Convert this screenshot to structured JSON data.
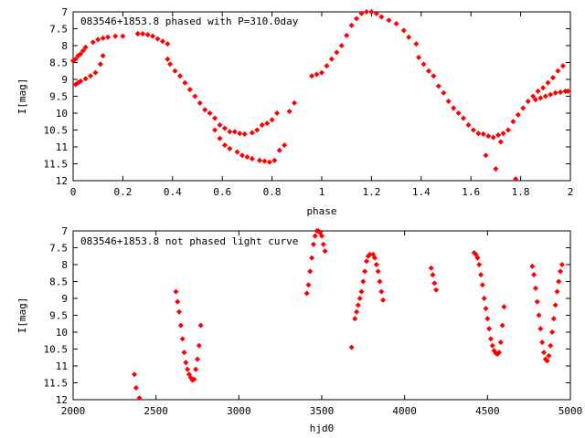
{
  "chart_data": [
    {
      "type": "scatter",
      "title": "083546+1853.8 phased with P=310.0day",
      "xlabel": "phase",
      "ylabel": "I[mag]",
      "xlim": [
        0,
        2
      ],
      "ylim": [
        12,
        7
      ],
      "y_inverted": true,
      "x_ticks": [
        "0",
        "0.2",
        "0.4",
        "0.6",
        "0.8",
        "1",
        "1.2",
        "1.4",
        "1.6",
        "1.8",
        "2"
      ],
      "y_ticks": [
        "7",
        "7.5",
        "8",
        "8.5",
        "9",
        "9.5",
        "10",
        "10.5",
        "11",
        "11.5",
        "12"
      ],
      "marker_color": "#ff0000",
      "grid": false,
      "series": [
        {
          "points": [
            [
              0.0,
              8.45
            ],
            [
              0.01,
              8.4
            ],
            [
              0.02,
              8.3
            ],
            [
              0.03,
              8.25
            ],
            [
              0.04,
              8.15
            ],
            [
              0.05,
              8.05
            ],
            [
              0.08,
              7.9
            ],
            [
              0.1,
              7.82
            ],
            [
              0.12,
              7.78
            ],
            [
              0.14,
              7.75
            ],
            [
              0.17,
              7.72
            ],
            [
              0.2,
              7.72
            ],
            [
              0.26,
              7.65
            ],
            [
              0.28,
              7.65
            ],
            [
              0.3,
              7.68
            ],
            [
              0.32,
              7.72
            ],
            [
              0.34,
              7.8
            ],
            [
              0.36,
              7.87
            ],
            [
              0.38,
              7.95
            ],
            [
              0.01,
              9.15
            ],
            [
              0.02,
              9.1
            ],
            [
              0.03,
              9.05
            ],
            [
              0.05,
              8.98
            ],
            [
              0.07,
              8.9
            ],
            [
              0.09,
              8.8
            ],
            [
              0.11,
              8.55
            ],
            [
              0.12,
              8.3
            ],
            [
              0.38,
              8.4
            ],
            [
              0.39,
              8.55
            ],
            [
              0.41,
              8.75
            ],
            [
              0.43,
              8.9
            ],
            [
              0.45,
              9.1
            ],
            [
              0.47,
              9.3
            ],
            [
              0.49,
              9.5
            ],
            [
              0.51,
              9.7
            ],
            [
              0.53,
              9.9
            ],
            [
              0.55,
              10.0
            ],
            [
              0.57,
              10.15
            ],
            [
              0.59,
              10.35
            ],
            [
              0.61,
              10.45
            ],
            [
              0.63,
              10.55
            ],
            [
              0.65,
              10.55
            ],
            [
              0.67,
              10.6
            ],
            [
              0.69,
              10.62
            ],
            [
              0.72,
              10.58
            ],
            [
              0.74,
              10.5
            ],
            [
              0.76,
              10.35
            ],
            [
              0.78,
              10.3
            ],
            [
              0.8,
              10.2
            ],
            [
              0.82,
              10.0
            ],
            [
              0.57,
              10.5
            ],
            [
              0.59,
              10.75
            ],
            [
              0.61,
              10.95
            ],
            [
              0.63,
              11.05
            ],
            [
              0.66,
              11.15
            ],
            [
              0.68,
              11.25
            ],
            [
              0.7,
              11.3
            ],
            [
              0.72,
              11.35
            ],
            [
              0.75,
              11.4
            ],
            [
              0.77,
              11.42
            ],
            [
              0.79,
              11.45
            ],
            [
              0.81,
              11.4
            ],
            [
              0.83,
              11.1
            ],
            [
              0.85,
              10.95
            ],
            [
              0.87,
              9.95
            ],
            [
              0.89,
              9.7
            ],
            [
              0.96,
              8.9
            ],
            [
              0.98,
              8.85
            ],
            [
              1.0,
              8.8
            ],
            [
              1.02,
              8.6
            ],
            [
              1.04,
              8.4
            ],
            [
              1.06,
              8.2
            ],
            [
              1.08,
              8.0
            ],
            [
              1.1,
              7.7
            ],
            [
              1.12,
              7.4
            ],
            [
              1.14,
              7.2
            ],
            [
              1.16,
              7.05
            ],
            [
              1.18,
              7.0
            ],
            [
              1.2,
              7.0
            ],
            [
              1.22,
              7.05
            ],
            [
              1.24,
              7.15
            ],
            [
              1.27,
              7.25
            ],
            [
              1.3,
              7.35
            ],
            [
              1.33,
              7.55
            ],
            [
              1.35,
              7.75
            ],
            [
              1.38,
              7.95
            ],
            [
              1.39,
              8.35
            ],
            [
              1.41,
              8.55
            ],
            [
              1.43,
              8.75
            ],
            [
              1.45,
              8.9
            ],
            [
              1.47,
              9.2
            ],
            [
              1.49,
              9.4
            ],
            [
              1.51,
              9.65
            ],
            [
              1.53,
              9.85
            ],
            [
              1.55,
              10.0
            ],
            [
              1.57,
              10.15
            ],
            [
              1.59,
              10.35
            ],
            [
              1.61,
              10.5
            ],
            [
              1.63,
              10.6
            ],
            [
              1.65,
              10.62
            ],
            [
              1.67,
              10.68
            ],
            [
              1.69,
              10.72
            ],
            [
              1.71,
              10.65
            ],
            [
              1.73,
              10.6
            ],
            [
              1.75,
              10.5
            ],
            [
              1.77,
              10.25
            ],
            [
              1.79,
              10.05
            ],
            [
              1.81,
              9.85
            ],
            [
              1.83,
              9.65
            ],
            [
              1.85,
              9.5
            ],
            [
              1.87,
              9.35
            ],
            [
              1.89,
              9.25
            ],
            [
              1.91,
              9.1
            ],
            [
              1.93,
              8.95
            ],
            [
              1.95,
              8.75
            ],
            [
              1.97,
              8.6
            ],
            [
              1.86,
              9.6
            ],
            [
              1.88,
              9.55
            ],
            [
              1.9,
              9.5
            ],
            [
              1.92,
              9.45
            ],
            [
              1.94,
              9.4
            ],
            [
              1.96,
              9.38
            ],
            [
              1.98,
              9.35
            ],
            [
              1.99,
              9.35
            ],
            [
              1.66,
              11.25
            ],
            [
              1.7,
              11.65
            ],
            [
              1.78,
              11.95
            ],
            [
              1.72,
              10.85
            ]
          ]
        }
      ]
    },
    {
      "type": "scatter",
      "title": "083546+1853.8 not phased light curve",
      "xlabel": "hjd0",
      "ylabel": "I[mag]",
      "xlim": [
        2000,
        5000
      ],
      "ylim": [
        12,
        7
      ],
      "y_inverted": true,
      "x_ticks": [
        "2000",
        "2500",
        "3000",
        "3500",
        "4000",
        "4500",
        "5000"
      ],
      "y_ticks": [
        "7",
        "7.5",
        "8",
        "8.5",
        "9",
        "9.5",
        "10",
        "10.5",
        "11",
        "11.5",
        "12"
      ],
      "marker_color": "#ff0000",
      "grid": false,
      "series": [
        {
          "points": [
            [
              2370,
              11.25
            ],
            [
              2380,
              11.65
            ],
            [
              2400,
              11.95
            ],
            [
              2620,
              8.8
            ],
            [
              2630,
              9.1
            ],
            [
              2640,
              9.4
            ],
            [
              2650,
              9.8
            ],
            [
              2660,
              10.2
            ],
            [
              2670,
              10.6
            ],
            [
              2680,
              10.9
            ],
            [
              2690,
              11.1
            ],
            [
              2700,
              11.25
            ],
            [
              2710,
              11.35
            ],
            [
              2720,
              11.42
            ],
            [
              2730,
              11.4
            ],
            [
              2740,
              11.1
            ],
            [
              2750,
              10.8
            ],
            [
              2760,
              10.4
            ],
            [
              2770,
              9.8
            ],
            [
              3410,
              8.85
            ],
            [
              3420,
              8.6
            ],
            [
              3430,
              8.2
            ],
            [
              3440,
              7.8
            ],
            [
              3450,
              7.4
            ],
            [
              3460,
              7.15
            ],
            [
              3470,
              7.0
            ],
            [
              3480,
              7.0
            ],
            [
              3490,
              7.05
            ],
            [
              3500,
              7.15
            ],
            [
              3510,
              7.4
            ],
            [
              3520,
              7.6
            ],
            [
              3680,
              10.45
            ],
            [
              3700,
              9.6
            ],
            [
              3710,
              9.4
            ],
            [
              3720,
              9.2
            ],
            [
              3730,
              9.0
            ],
            [
              3740,
              8.8
            ],
            [
              3750,
              8.5
            ],
            [
              3760,
              8.2
            ],
            [
              3770,
              7.9
            ],
            [
              3780,
              7.75
            ],
            [
              3790,
              7.7
            ],
            [
              3810,
              7.7
            ],
            [
              3820,
              7.8
            ],
            [
              3830,
              8.0
            ],
            [
              3840,
              8.2
            ],
            [
              3850,
              8.5
            ],
            [
              3860,
              8.8
            ],
            [
              3870,
              9.05
            ],
            [
              4160,
              8.1
            ],
            [
              4170,
              8.3
            ],
            [
              4180,
              8.55
            ],
            [
              4190,
              8.75
            ],
            [
              4420,
              7.65
            ],
            [
              4430,
              7.7
            ],
            [
              4440,
              7.8
            ],
            [
              4450,
              8.0
            ],
            [
              4460,
              8.3
            ],
            [
              4470,
              8.6
            ],
            [
              4480,
              9.0
            ],
            [
              4490,
              9.3
            ],
            [
              4500,
              9.6
            ],
            [
              4510,
              9.9
            ],
            [
              4520,
              10.2
            ],
            [
              4530,
              10.4
            ],
            [
              4540,
              10.55
            ],
            [
              4550,
              10.62
            ],
            [
              4560,
              10.65
            ],
            [
              4570,
              10.6
            ],
            [
              4580,
              10.3
            ],
            [
              4590,
              9.8
            ],
            [
              4600,
              9.25
            ],
            [
              4770,
              8.05
            ],
            [
              4780,
              8.3
            ],
            [
              4790,
              8.7
            ],
            [
              4800,
              9.1
            ],
            [
              4810,
              9.5
            ],
            [
              4820,
              9.9
            ],
            [
              4830,
              10.3
            ],
            [
              4840,
              10.6
            ],
            [
              4850,
              10.8
            ],
            [
              4860,
              10.85
            ],
            [
              4870,
              10.7
            ],
            [
              4880,
              10.4
            ],
            [
              4890,
              10.0
            ],
            [
              4900,
              9.6
            ],
            [
              4910,
              9.2
            ],
            [
              4920,
              8.8
            ],
            [
              4930,
              8.5
            ],
            [
              4940,
              8.2
            ],
            [
              4950,
              8.0
            ]
          ]
        }
      ]
    }
  ]
}
